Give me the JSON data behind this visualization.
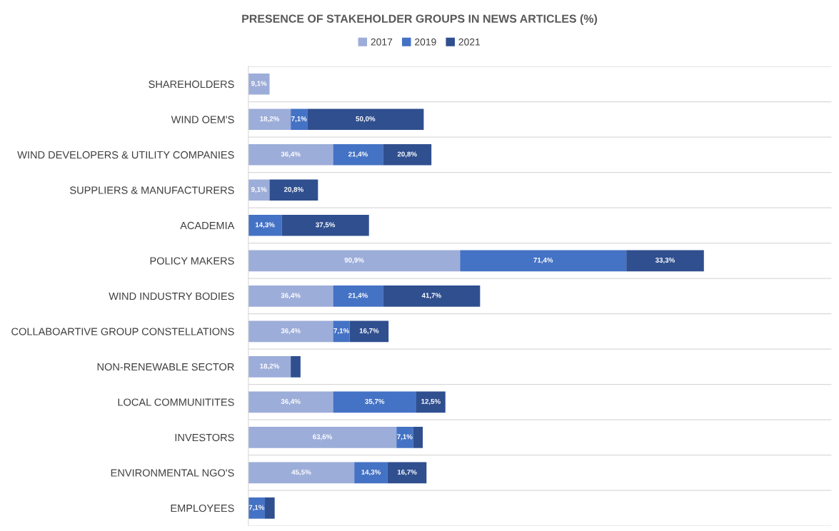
{
  "chart_data": {
    "type": "bar",
    "orientation": "horizontal",
    "stacked": true,
    "title": "PRESENCE OF STAKEHOLDER GROUPS IN NEWS ARTICLES (%)",
    "categories": [
      "SHAREHOLDERS",
      "WIND OEM'S",
      "WIND DEVELOPERS & UTILITY COMPANIES",
      "SUPPLIERS & MANUFACTURERS",
      "ACADEMIA",
      "POLICY MAKERS",
      "WIND INDUSTRY BODIES",
      "COLLABOARTIVE GROUP CONSTELLATIONS",
      "NON-RENEWABLE SECTOR",
      "LOCAL COMMUNITITES",
      "INVESTORS",
      "ENVIRONMENTAL NGO'S",
      "EMPLOYEES"
    ],
    "series": [
      {
        "name": "2017",
        "color": "#9dadd9",
        "values": [
          9.1,
          18.2,
          36.4,
          9.1,
          null,
          90.9,
          36.4,
          36.4,
          18.2,
          36.4,
          63.6,
          45.5,
          null
        ],
        "value_labels": [
          "9,1%",
          "18,2%",
          "36,4%",
          "9,1%",
          null,
          "90,9%",
          "36,4%",
          "36,4%",
          "18,2%",
          "36,4%",
          "63,6%",
          "45,5%",
          null
        ]
      },
      {
        "name": "2019",
        "color": "#4472c4",
        "values": [
          null,
          7.1,
          21.4,
          null,
          14.3,
          71.4,
          21.4,
          7.1,
          null,
          35.7,
          7.1,
          14.3,
          7.1
        ],
        "value_labels": [
          null,
          "7,1%",
          "21,4%",
          null,
          "14,3%",
          "71,4%",
          "21,4%",
          "7,1%",
          null,
          "35,7%",
          "7,1%",
          "14,3%",
          "7,1%"
        ]
      },
      {
        "name": "2021",
        "color": "#2f4f8f",
        "values": [
          null,
          50.0,
          20.8,
          20.8,
          37.5,
          33.3,
          41.7,
          16.7,
          4.2,
          12.5,
          4.2,
          16.7,
          4.2
        ],
        "value_labels": [
          null,
          "50,0%",
          "20,8%",
          "20,8%",
          "37,5%",
          "33,3%",
          "41,7%",
          "16,7%",
          null,
          "12,5%",
          null,
          "16,7%",
          null
        ]
      }
    ],
    "grid": "y",
    "legend": "top"
  }
}
